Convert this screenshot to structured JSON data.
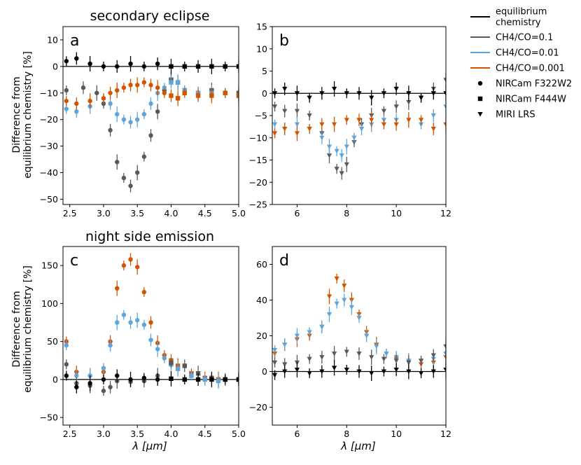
{
  "figure": {
    "ylabel_top_line1": "Difference from",
    "ylabel_top_line2": "equilibrium chemistry [%]",
    "ylabel_bottom_line1": "Difference from",
    "ylabel_bottom_line2": "equilibrium chemistry [%]",
    "xlabel_left": "λ [μm]",
    "xlabel_right": "λ [μm]",
    "row_title_top": "secondary eclipse",
    "row_title_bottom": "night side emission"
  },
  "legend": {
    "entries": [
      {
        "label_line1": "equilibrium",
        "label_line2": "chemistry",
        "type": "line",
        "color": "#000000"
      },
      {
        "label_line1": "CH4/CO=0.1",
        "label_line2": "",
        "type": "line",
        "color": "#595959"
      },
      {
        "label_line1": "CH4/CO=0.01",
        "label_line2": "",
        "type": "line",
        "color": "#5da5da"
      },
      {
        "label_line1": "CH4/CO=0.001",
        "label_line2": "",
        "type": "line",
        "color": "#d35400"
      },
      {
        "label_line1": "NIRCam F322W2",
        "label_line2": "",
        "type": "marker",
        "marker": "circle",
        "color": "#000000"
      },
      {
        "label_line1": "NIRCam F444W",
        "label_line2": "",
        "type": "marker",
        "marker": "square",
        "color": "#000000"
      },
      {
        "label_line1": "MIRI LRS",
        "label_line2": "",
        "type": "marker",
        "marker": "triangle-down",
        "color": "#000000"
      }
    ]
  },
  "colors": {
    "eq": "#000000",
    "r01": "#595959",
    "r001": "#5da5da",
    "r0001": "#d35400"
  },
  "chart_data": [
    {
      "panel": "a",
      "type": "scatter",
      "title": "secondary eclipse",
      "xlabel": "",
      "ylabel": "Difference from equilibrium chemistry [%]",
      "xlim": [
        2.4,
        5.0
      ],
      "ylim": [
        -52,
        15
      ],
      "xticks": [
        2.5,
        3.0,
        3.5,
        4.0,
        4.5,
        5.0
      ],
      "xtick_labels": [
        "2.5",
        "3.0",
        "3.5",
        "4.0",
        "4.5",
        "5.0"
      ],
      "yticks": [
        10,
        0,
        -10,
        -20,
        -30,
        -40,
        -50
      ],
      "ytick_labels": [
        "10",
        "0",
        "−10",
        "−20",
        "−30",
        "−40",
        "−50"
      ],
      "series": [
        {
          "name": "CH4/CO=0.1",
          "color_key": "r01",
          "x": [
            2.45,
            2.7,
            2.9,
            3.0,
            3.1,
            3.2,
            3.3,
            3.4,
            3.5,
            3.6,
            3.7,
            3.8,
            3.9,
            4.0,
            4.1,
            4.2,
            4.4,
            4.6,
            4.8,
            5.0
          ],
          "y": [
            -9,
            -8,
            -10,
            -14,
            -24,
            -36,
            -42,
            -45,
            -40,
            -34,
            -26,
            -17,
            -9,
            -5,
            -6,
            -9,
            -10,
            -9,
            -10,
            -10
          ]
        },
        {
          "name": "CH4/CO=0.01",
          "color_key": "r001",
          "x": [
            2.45,
            2.6,
            2.8,
            3.0,
            3.1,
            3.2,
            3.3,
            3.4,
            3.5,
            3.6,
            3.7,
            3.8,
            3.9,
            4.0,
            4.1,
            4.2,
            4.4,
            4.6,
            4.8,
            5.0
          ],
          "y": [
            -16,
            -17,
            -15,
            -12,
            -14,
            -18,
            -20,
            -21,
            -20,
            -18,
            -14,
            -10,
            -8,
            -6,
            -6,
            -9,
            -10,
            -10,
            -10,
            -11
          ]
        },
        {
          "name": "CH4/CO=0.001",
          "color_key": "r0001",
          "x": [
            2.45,
            2.6,
            2.8,
            3.0,
            3.1,
            3.2,
            3.3,
            3.4,
            3.5,
            3.6,
            3.7,
            3.8,
            3.9,
            4.0,
            4.1,
            4.2,
            4.4,
            4.6,
            4.8,
            5.0
          ],
          "y": [
            -13,
            -14,
            -13,
            -12,
            -10,
            -9,
            -8,
            -7,
            -7,
            -6,
            -7,
            -8,
            -10,
            -11,
            -12,
            -10,
            -11,
            -11,
            -10,
            -11
          ]
        },
        {
          "name": "equilibrium chemistry",
          "color_key": "eq",
          "x": [
            2.45,
            2.6,
            2.8,
            3.0,
            3.2,
            3.4,
            3.6,
            3.8,
            4.0,
            4.2,
            4.4,
            4.6,
            4.8,
            5.0
          ],
          "y": [
            2,
            3,
            1,
            0,
            0,
            1,
            0,
            1,
            0,
            0,
            0,
            0,
            0,
            0
          ]
        }
      ]
    },
    {
      "panel": "b",
      "type": "scatter",
      "title": "",
      "xlabel": "",
      "ylabel": "",
      "xlim": [
        5,
        12
      ],
      "ylim": [
        -25,
        15
      ],
      "xticks": [
        6,
        8,
        10,
        12
      ],
      "xtick_labels": [
        "6",
        "8",
        "10",
        "12"
      ],
      "yticks": [
        15,
        10,
        5,
        0,
        -5,
        -10,
        -15,
        -20,
        -25
      ],
      "ytick_labels": [
        "15",
        "10",
        "5",
        "0",
        "−5",
        "−10",
        "−15",
        "−20",
        "−25"
      ],
      "series": [
        {
          "name": "CH4/CO=0.1",
          "color_key": "r01",
          "x": [
            5.1,
            5.5,
            6.0,
            6.5,
            7.0,
            7.3,
            7.6,
            7.8,
            8.0,
            8.3,
            8.6,
            9.0,
            9.5,
            10.0,
            10.5,
            11.0,
            11.5,
            12.0
          ],
          "y": [
            -3,
            -4,
            -4,
            -5,
            -9,
            -14,
            -17,
            -18,
            -16,
            -11,
            -7,
            -5,
            -4,
            -3,
            -2,
            -1,
            1,
            3
          ]
        },
        {
          "name": "CH4/CO=0.01",
          "color_key": "r001",
          "x": [
            5.1,
            5.5,
            6.0,
            6.5,
            7.0,
            7.3,
            7.6,
            7.8,
            8.0,
            8.3,
            8.6,
            9.0,
            9.5,
            10.0,
            10.5,
            11.0,
            11.5,
            12.0
          ],
          "y": [
            -7,
            -8,
            -7,
            -8,
            -10,
            -12,
            -13,
            -14,
            -12,
            -10,
            -8,
            -7,
            -6,
            -6,
            -6,
            -7,
            -5,
            -3
          ]
        },
        {
          "name": "CH4/CO=0.001",
          "color_key": "r0001",
          "x": [
            5.1,
            5.5,
            6.0,
            6.5,
            7.0,
            7.5,
            8.0,
            8.5,
            9.0,
            9.5,
            10.0,
            10.5,
            11.0,
            11.5,
            12.0
          ],
          "y": [
            -9,
            -8,
            -9,
            -8,
            -7,
            -7,
            -6,
            -6,
            -6,
            -7,
            -7,
            -6,
            -6,
            -8,
            -7
          ]
        },
        {
          "name": "equilibrium chemistry",
          "color_key": "eq",
          "x": [
            5.1,
            5.5,
            6.0,
            6.5,
            7.0,
            7.5,
            8.0,
            8.5,
            9.0,
            9.5,
            10.0,
            10.5,
            11.0,
            11.5,
            12.0
          ],
          "y": [
            0,
            1,
            0,
            -1,
            0,
            1,
            0,
            0,
            -1,
            0,
            1,
            0,
            -1,
            0,
            0
          ]
        }
      ]
    },
    {
      "panel": "c",
      "type": "scatter",
      "title": "night side emission",
      "xlabel": "λ [μm]",
      "ylabel": "Difference from equilibrium chemistry [%]",
      "xlim": [
        2.4,
        5.0
      ],
      "ylim": [
        -60,
        175
      ],
      "xticks": [
        2.5,
        3.0,
        3.5,
        4.0,
        4.5,
        5.0
      ],
      "xtick_labels": [
        "2.5",
        "3.0",
        "3.5",
        "4.0",
        "4.5",
        "5.0"
      ],
      "yticks": [
        150,
        100,
        50,
        0,
        -50
      ],
      "ytick_labels": [
        "150",
        "100",
        "50",
        "0",
        "−50"
      ],
      "series": [
        {
          "name": "CH4/CO=0.001",
          "color_key": "r0001",
          "x": [
            2.45,
            2.6,
            2.8,
            3.0,
            3.1,
            3.2,
            3.3,
            3.4,
            3.5,
            3.6,
            3.7,
            3.8,
            3.9,
            4.0,
            4.1,
            4.3,
            4.5,
            4.7,
            5.0
          ],
          "y": [
            50,
            10,
            5,
            10,
            50,
            120,
            150,
            158,
            148,
            115,
            75,
            48,
            32,
            25,
            18,
            8,
            2,
            0,
            0
          ]
        },
        {
          "name": "CH4/CO=0.01",
          "color_key": "r001",
          "x": [
            2.45,
            2.6,
            2.8,
            3.0,
            3.1,
            3.2,
            3.3,
            3.4,
            3.5,
            3.6,
            3.7,
            3.8,
            3.9,
            4.0,
            4.1,
            4.3,
            4.5,
            4.7,
            5.0
          ],
          "y": [
            45,
            5,
            5,
            15,
            45,
            75,
            85,
            75,
            78,
            72,
            52,
            40,
            28,
            20,
            14,
            5,
            0,
            -2,
            0
          ]
        },
        {
          "name": "CH4/CO=0.1",
          "color_key": "r01",
          "x": [
            2.45,
            2.6,
            2.8,
            3.0,
            3.1,
            3.2,
            3.4,
            3.6,
            3.8,
            4.0,
            4.2,
            4.4,
            4.6,
            4.8,
            5.0
          ],
          "y": [
            20,
            -5,
            -8,
            -15,
            -10,
            -2,
            -3,
            -2,
            5,
            22,
            18,
            8,
            2,
            0,
            0
          ]
        },
        {
          "name": "equilibrium chemistry",
          "color_key": "eq",
          "x": [
            2.45,
            2.6,
            2.8,
            3.0,
            3.2,
            3.4,
            3.6,
            3.8,
            4.0,
            4.2,
            4.4,
            4.6,
            4.8,
            5.0
          ],
          "y": [
            5,
            -10,
            -5,
            0,
            5,
            0,
            2,
            0,
            1,
            0,
            0,
            0,
            0,
            0
          ]
        }
      ]
    },
    {
      "panel": "d",
      "type": "scatter",
      "title": "",
      "xlabel": "λ [μm]",
      "ylabel": "",
      "xlim": [
        5,
        12
      ],
      "ylim": [
        -30,
        70
      ],
      "xticks": [
        6,
        8,
        10,
        12
      ],
      "xtick_labels": [
        "6",
        "8",
        "10",
        "12"
      ],
      "yticks": [
        60,
        40,
        20,
        0,
        -20
      ],
      "ytick_labels": [
        "60",
        "40",
        "20",
        "0",
        "−20"
      ],
      "series": [
        {
          "name": "CH4/CO=0.001",
          "color_key": "r0001",
          "x": [
            5.1,
            5.5,
            6.0,
            6.5,
            7.0,
            7.3,
            7.6,
            7.9,
            8.2,
            8.5,
            8.8,
            9.2,
            9.6,
            10.0,
            10.5,
            11.0,
            11.5,
            12.0
          ],
          "y": [
            10,
            15,
            18,
            20,
            25,
            42,
            52,
            48,
            40,
            32,
            22,
            15,
            10,
            7,
            5,
            4,
            5,
            8
          ]
        },
        {
          "name": "CH4/CO=0.01",
          "color_key": "r001",
          "x": [
            5.1,
            5.5,
            6.0,
            6.5,
            7.0,
            7.3,
            7.6,
            7.9,
            8.2,
            8.5,
            8.8,
            9.2,
            9.6,
            10.0,
            10.5,
            11.0,
            11.5,
            12.0
          ],
          "y": [
            12,
            15,
            20,
            22,
            25,
            32,
            38,
            40,
            36,
            30,
            20,
            14,
            10,
            8,
            6,
            6,
            7,
            10
          ]
        },
        {
          "name": "CH4/CO=0.1",
          "color_key": "r01",
          "x": [
            5.1,
            5.5,
            6.0,
            6.5,
            7.0,
            7.5,
            8.0,
            8.5,
            9.0,
            9.5,
            10.0,
            10.5,
            11.0,
            11.5,
            12.0
          ],
          "y": [
            5,
            4,
            5,
            7,
            8,
            10,
            11,
            10,
            8,
            7,
            6,
            5,
            6,
            9,
            14
          ]
        },
        {
          "name": "equilibrium chemistry",
          "color_key": "eq",
          "x": [
            5.1,
            5.5,
            6.0,
            6.5,
            7.0,
            7.5,
            8.0,
            8.5,
            9.0,
            9.5,
            10.0,
            10.5,
            11.0,
            11.5,
            12.0
          ],
          "y": [
            -2,
            0,
            1,
            -1,
            0,
            2,
            1,
            0,
            -1,
            0,
            1,
            0,
            -1,
            0,
            1
          ]
        }
      ]
    }
  ]
}
